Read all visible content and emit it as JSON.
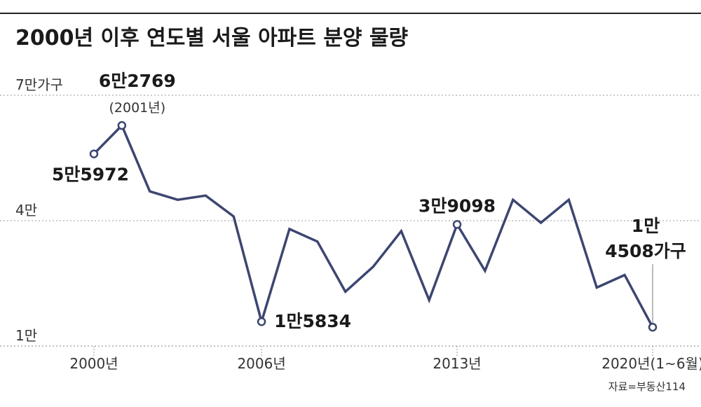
{
  "title": "2000년 이후 연도별 서울 아파트 분양 물량",
  "source": "자료=부동산114",
  "colors": {
    "line": "#3c4670",
    "grid": "#9a9a9a",
    "text": "#222222",
    "top_rule": "#222222"
  },
  "chart_data": {
    "type": "line",
    "title": "2000년 이후 연도별 서울 아파트 분양 물량",
    "ylim": [
      10000,
      70000
    ],
    "grid": "dashed horizontal",
    "y_ticks": [
      {
        "value": 70000,
        "label": "7만가구"
      },
      {
        "value": 40000,
        "label": "4만"
      },
      {
        "value": 10000,
        "label": "1만"
      }
    ],
    "x_ticks": [
      {
        "value": 2000,
        "label": "2000년"
      },
      {
        "value": 2006,
        "label": "2006년"
      },
      {
        "value": 2013,
        "label": "2013년"
      },
      {
        "value": 2020,
        "label": "2020년(1~6월)"
      }
    ],
    "series": [
      {
        "x": [
          2000,
          2001,
          2002,
          2003,
          2004,
          2005,
          2006,
          2007,
          2008,
          2009,
          2010,
          2011,
          2012,
          2013,
          2014,
          2015,
          2016,
          2017,
          2018,
          2019,
          2020
        ],
        "values": [
          55972,
          62769,
          47000,
          45000,
          46000,
          41000,
          15834,
          38000,
          35000,
          23000,
          29000,
          37500,
          21000,
          39098,
          28000,
          45000,
          39500,
          45000,
          24000,
          27000,
          14508
        ]
      }
    ],
    "markers": [
      2000,
      2001,
      2006,
      2013,
      2020
    ],
    "annotations": [
      {
        "x": 2001,
        "lines": [
          "6만2769",
          "(2001년)"
        ]
      },
      {
        "x": 2000,
        "lines": [
          "5만5972"
        ]
      },
      {
        "x": 2006,
        "lines": [
          "1만5834"
        ]
      },
      {
        "x": 2013,
        "lines": [
          "3만9098"
        ]
      },
      {
        "x": 2020,
        "lines": [
          "1만",
          "4508가구"
        ]
      }
    ]
  }
}
